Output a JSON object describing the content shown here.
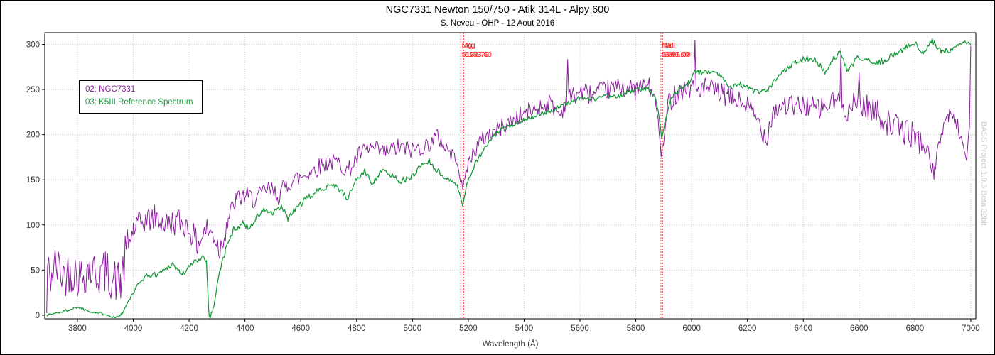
{
  "window": {
    "title": "NGC7331 Newton 150/750 - Atik 314L - Alpy 600",
    "subtitle": "S. Neveu - OHP - 12 Aout 2016",
    "watermark": "BASS Project 1.9.3 Beta 32bit"
  },
  "legend": {
    "items": [
      {
        "label": "02: NGC7331",
        "color": "#8a1f9c"
      },
      {
        "label": "03: K5III Reference Spectrum",
        "color": "#18993c"
      }
    ]
  },
  "chart_data": {
    "type": "line",
    "title": "NGC7331 Newton 150/750 - Atik 314L - Alpy 600",
    "subtitle": "S. Neveu - OHP - 12 Aout 2016",
    "xlabel": "Wavelength (Å)",
    "ylabel": "",
    "xlim": [
      3683,
      7018
    ],
    "ylim": [
      -4,
      313
    ],
    "xticks": [
      3800,
      4000,
      4200,
      4400,
      4600,
      4800,
      5000,
      5200,
      5400,
      5600,
      5800,
      6000,
      6200,
      6400,
      6600,
      6800,
      7000
    ],
    "yticks": [
      0,
      50,
      100,
      150,
      200,
      250,
      300
    ],
    "grid": true,
    "legend_position": "upper-left",
    "colors": {
      "grid": "#c8c8c8",
      "axis_text": "#333333",
      "annotation": "#ff1a1a",
      "annotation_line": "#ff5555",
      "watermark": "#c9c9c9",
      "border": "#000000"
    },
    "line_annotations": [
      {
        "label": "Mg",
        "wavelength": 5172.7,
        "display": "5172.70"
      },
      {
        "label": "Mg",
        "wavelength": 5183.6,
        "display": "5183.60"
      },
      {
        "label": "NaI",
        "wavelength": 5890.0,
        "display": "5890.00"
      },
      {
        "label": "NaI",
        "wavelength": 5896.0,
        "display": "5896.00"
      }
    ],
    "series": [
      {
        "name": "02: NGC7331",
        "color": "#8a1f9c",
        "stroke_width": 1,
        "seed": 42,
        "noise": [
          [
            3683,
            2
          ],
          [
            3694,
            25
          ],
          [
            3985,
            15
          ],
          [
            4350,
            11
          ],
          [
            4600,
            10
          ],
          [
            5150,
            5
          ],
          [
            5200,
            10
          ],
          [
            5560,
            11
          ],
          [
            5860,
            4
          ],
          [
            5910,
            12
          ],
          [
            6200,
            13
          ],
          [
            6500,
            15
          ],
          [
            6830,
            9
          ],
          [
            6990,
            4
          ]
        ],
        "anchors": [
          [
            3690,
            2
          ],
          [
            3693,
            55
          ],
          [
            3700,
            40
          ],
          [
            3720,
            55
          ],
          [
            3750,
            45
          ],
          [
            3780,
            50
          ],
          [
            3810,
            42
          ],
          [
            3840,
            52
          ],
          [
            3870,
            45
          ],
          [
            3900,
            48
          ],
          [
            3930,
            40
          ],
          [
            3955,
            35
          ],
          [
            3975,
            70
          ],
          [
            4000,
            95
          ],
          [
            4040,
            105
          ],
          [
            4080,
            108
          ],
          [
            4120,
            100
          ],
          [
            4160,
            105
          ],
          [
            4200,
            97
          ],
          [
            4230,
            78
          ],
          [
            4260,
            95
          ],
          [
            4290,
            88
          ],
          [
            4310,
            72
          ],
          [
            4340,
            108
          ],
          [
            4370,
            128
          ],
          [
            4400,
            132
          ],
          [
            4440,
            128
          ],
          [
            4480,
            140
          ],
          [
            4520,
            133
          ],
          [
            4560,
            148
          ],
          [
            4600,
            153
          ],
          [
            4650,
            162
          ],
          [
            4700,
            170
          ],
          [
            4740,
            168
          ],
          [
            4770,
            160
          ],
          [
            4810,
            178
          ],
          [
            4850,
            185
          ],
          [
            4900,
            180
          ],
          [
            4950,
            186
          ],
          [
            5000,
            183
          ],
          [
            5050,
            188
          ],
          [
            5090,
            198
          ],
          [
            5130,
            182
          ],
          [
            5160,
            172
          ],
          [
            5172,
            150
          ],
          [
            5180,
            139
          ],
          [
            5192,
            160
          ],
          [
            5220,
            182
          ],
          [
            5260,
            198
          ],
          [
            5300,
            205
          ],
          [
            5350,
            214
          ],
          [
            5400,
            224
          ],
          [
            5450,
            229
          ],
          [
            5490,
            236
          ],
          [
            5530,
            222
          ],
          [
            5552,
            240
          ],
          [
            5556,
            286
          ],
          [
            5560,
            240
          ],
          [
            5600,
            248
          ],
          [
            5650,
            244
          ],
          [
            5700,
            250
          ],
          [
            5750,
            253
          ],
          [
            5800,
            249
          ],
          [
            5840,
            256
          ],
          [
            5868,
            242
          ],
          [
            5880,
            215
          ],
          [
            5891,
            178
          ],
          [
            5902,
            195
          ],
          [
            5915,
            235
          ],
          [
            5950,
            248
          ],
          [
            5985,
            252
          ],
          [
            6008,
            252
          ],
          [
            6012,
            307
          ],
          [
            6016,
            250
          ],
          [
            6050,
            252
          ],
          [
            6100,
            246
          ],
          [
            6150,
            240
          ],
          [
            6200,
            232
          ],
          [
            6240,
            214
          ],
          [
            6266,
            196
          ],
          [
            6290,
            225
          ],
          [
            6330,
            234
          ],
          [
            6370,
            230
          ],
          [
            6410,
            233
          ],
          [
            6450,
            228
          ],
          [
            6490,
            232
          ],
          [
            6531,
            240
          ],
          [
            6535,
            281
          ],
          [
            6539,
            238
          ],
          [
            6560,
            226
          ],
          [
            6596,
            235
          ],
          [
            6600,
            275
          ],
          [
            6604,
            233
          ],
          [
            6650,
            228
          ],
          [
            6700,
            214
          ],
          [
            6750,
            206
          ],
          [
            6800,
            199
          ],
          [
            6840,
            185
          ],
          [
            6870,
            157
          ],
          [
            6895,
            205
          ],
          [
            6920,
            222
          ],
          [
            6945,
            218
          ],
          [
            6965,
            196
          ],
          [
            6985,
            174
          ],
          [
            6995,
            210
          ],
          [
            7000,
            298
          ]
        ]
      },
      {
        "name": "03: K5III Reference Spectrum",
        "color": "#18993c",
        "stroke_width": 1.3,
        "seed": 1337,
        "noise": [
          [
            3683,
            1.5
          ],
          [
            3995,
            3
          ],
          [
            4320,
            3.5
          ],
          [
            5150,
            1.5
          ],
          [
            5200,
            2.5
          ],
          [
            5860,
            1.5
          ],
          [
            5930,
            3
          ],
          [
            6200,
            3.5
          ],
          [
            6985,
            1.5
          ]
        ],
        "anchors": [
          [
            3690,
            0
          ],
          [
            3760,
            5
          ],
          [
            3800,
            9
          ],
          [
            3860,
            3
          ],
          [
            3905,
            1
          ],
          [
            3935,
            -3
          ],
          [
            3960,
            2
          ],
          [
            4000,
            25
          ],
          [
            4040,
            43
          ],
          [
            4090,
            46
          ],
          [
            4140,
            57
          ],
          [
            4175,
            45
          ],
          [
            4215,
            58
          ],
          [
            4250,
            65
          ],
          [
            4262,
            60
          ],
          [
            4272,
            -3
          ],
          [
            4285,
            5
          ],
          [
            4305,
            42
          ],
          [
            4330,
            72
          ],
          [
            4360,
            95
          ],
          [
            4395,
            102
          ],
          [
            4415,
            96
          ],
          [
            4440,
            108
          ],
          [
            4470,
            117
          ],
          [
            4500,
            112
          ],
          [
            4530,
            120
          ],
          [
            4555,
            107
          ],
          [
            4590,
            121
          ],
          [
            4630,
            131
          ],
          [
            4670,
            139
          ],
          [
            4710,
            146
          ],
          [
            4745,
            138
          ],
          [
            4765,
            128
          ],
          [
            4800,
            151
          ],
          [
            4830,
            159
          ],
          [
            4858,
            146
          ],
          [
            4885,
            160
          ],
          [
            4920,
            156
          ],
          [
            4955,
            149
          ],
          [
            4990,
            151
          ],
          [
            5030,
            166
          ],
          [
            5060,
            171
          ],
          [
            5100,
            156
          ],
          [
            5135,
            150
          ],
          [
            5160,
            144
          ],
          [
            5172,
            130
          ],
          [
            5180,
            122
          ],
          [
            5195,
            145
          ],
          [
            5225,
            168
          ],
          [
            5265,
            188
          ],
          [
            5305,
            203
          ],
          [
            5350,
            210
          ],
          [
            5400,
            217
          ],
          [
            5450,
            221
          ],
          [
            5500,
            227
          ],
          [
            5550,
            234
          ],
          [
            5600,
            241
          ],
          [
            5650,
            239
          ],
          [
            5690,
            244
          ],
          [
            5730,
            241
          ],
          [
            5770,
            247
          ],
          [
            5810,
            250
          ],
          [
            5845,
            251
          ],
          [
            5868,
            242
          ],
          [
            5880,
            228
          ],
          [
            5893,
            196
          ],
          [
            5905,
            215
          ],
          [
            5925,
            240
          ],
          [
            5955,
            250
          ],
          [
            5985,
            256
          ],
          [
            6015,
            270
          ],
          [
            6045,
            268
          ],
          [
            6075,
            272
          ],
          [
            6105,
            265
          ],
          [
            6140,
            253
          ],
          [
            6175,
            256
          ],
          [
            6210,
            250
          ],
          [
            6245,
            246
          ],
          [
            6270,
            248
          ],
          [
            6305,
            262
          ],
          [
            6340,
            274
          ],
          [
            6375,
            281
          ],
          [
            6410,
            285
          ],
          [
            6445,
            282
          ],
          [
            6480,
            268
          ],
          [
            6510,
            284
          ],
          [
            6532,
            291
          ],
          [
            6562,
            268
          ],
          [
            6590,
            286
          ],
          [
            6625,
            282
          ],
          [
            6660,
            279
          ],
          [
            6695,
            283
          ],
          [
            6730,
            290
          ],
          [
            6765,
            296
          ],
          [
            6800,
            301
          ],
          [
            6830,
            289
          ],
          [
            6862,
            304
          ],
          [
            6895,
            291
          ],
          [
            6925,
            294
          ],
          [
            6955,
            299
          ],
          [
            6980,
            303
          ],
          [
            7000,
            300
          ]
        ]
      }
    ]
  }
}
